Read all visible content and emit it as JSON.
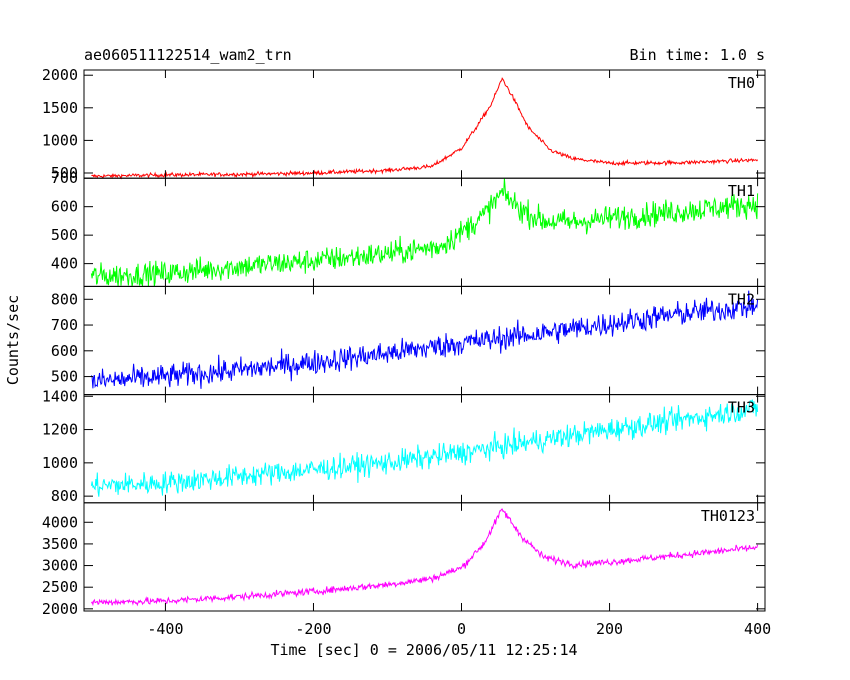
{
  "chart_data": {
    "type": "line",
    "title": "ae060511122514_wam2_trn",
    "bin_time_label": "Bin time: 1.0 s",
    "xlabel": "Time [sec] 0 = 2006/05/11 12:25:14",
    "ylabel": "Counts/sec",
    "xlim": [
      -510,
      410
    ],
    "x_ticks": [
      -400,
      -200,
      0,
      200,
      400
    ],
    "x_start": -500,
    "x_end": 400,
    "panels": [
      {
        "name": "TH0",
        "color": "#ff0000",
        "ylim": [
          420,
          2080
        ],
        "y_ticks": [
          500,
          1000,
          1500,
          2000
        ],
        "series": [
          [
            -500,
            450
          ],
          [
            -400,
            470
          ],
          [
            -300,
            480
          ],
          [
            -200,
            500
          ],
          [
            -100,
            540
          ],
          [
            -40,
            600
          ],
          [
            0,
            880
          ],
          [
            20,
            1200
          ],
          [
            40,
            1550
          ],
          [
            55,
            1950
          ],
          [
            70,
            1650
          ],
          [
            90,
            1200
          ],
          [
            120,
            850
          ],
          [
            150,
            720
          ],
          [
            200,
            650
          ],
          [
            300,
            660
          ],
          [
            400,
            700
          ]
        ],
        "noise": 15
      },
      {
        "name": "TH1",
        "color": "#00ff00",
        "ylim": [
          320,
          700
        ],
        "y_ticks": [
          400,
          500,
          600,
          700
        ],
        "series": [
          [
            -500,
            355
          ],
          [
            -400,
            365
          ],
          [
            -300,
            390
          ],
          [
            -200,
            410
          ],
          [
            -100,
            435
          ],
          [
            -30,
            460
          ],
          [
            0,
            510
          ],
          [
            30,
            570
          ],
          [
            55,
            650
          ],
          [
            80,
            590
          ],
          [
            110,
            550
          ],
          [
            150,
            545
          ],
          [
            200,
            560
          ],
          [
            300,
            585
          ],
          [
            400,
            610
          ]
        ],
        "noise": 22
      },
      {
        "name": "TH2",
        "color": "#0000ff",
        "ylim": [
          430,
          850
        ],
        "y_ticks": [
          500,
          600,
          700,
          800
        ],
        "series": [
          [
            -500,
            480
          ],
          [
            -400,
            500
          ],
          [
            -300,
            525
          ],
          [
            -200,
            555
          ],
          [
            -100,
            590
          ],
          [
            0,
            630
          ],
          [
            100,
            665
          ],
          [
            200,
            705
          ],
          [
            300,
            745
          ],
          [
            400,
            775
          ]
        ],
        "noise": 24
      },
      {
        "name": "TH3",
        "color": "#00ffff",
        "ylim": [
          760,
          1410
        ],
        "y_ticks": [
          800,
          1000,
          1200,
          1400
        ],
        "series": [
          [
            -500,
            860
          ],
          [
            -400,
            880
          ],
          [
            -300,
            920
          ],
          [
            -200,
            960
          ],
          [
            -100,
            1000
          ],
          [
            0,
            1060
          ],
          [
            100,
            1130
          ],
          [
            200,
            1200
          ],
          [
            300,
            1260
          ],
          [
            400,
            1330
          ]
        ],
        "noise": 35
      },
      {
        "name": "TH0123",
        "color": "#ff00ff",
        "ylim": [
          1950,
          4450
        ],
        "y_ticks": [
          2000,
          2500,
          3000,
          3500,
          4000
        ],
        "series": [
          [
            -500,
            2150
          ],
          [
            -400,
            2180
          ],
          [
            -300,
            2280
          ],
          [
            -200,
            2400
          ],
          [
            -100,
            2560
          ],
          [
            -40,
            2700
          ],
          [
            0,
            2950
          ],
          [
            30,
            3500
          ],
          [
            55,
            4300
          ],
          [
            80,
            3700
          ],
          [
            110,
            3200
          ],
          [
            150,
            3030
          ],
          [
            200,
            3080
          ],
          [
            300,
            3250
          ],
          [
            400,
            3420
          ]
        ],
        "noise": 40
      }
    ]
  }
}
